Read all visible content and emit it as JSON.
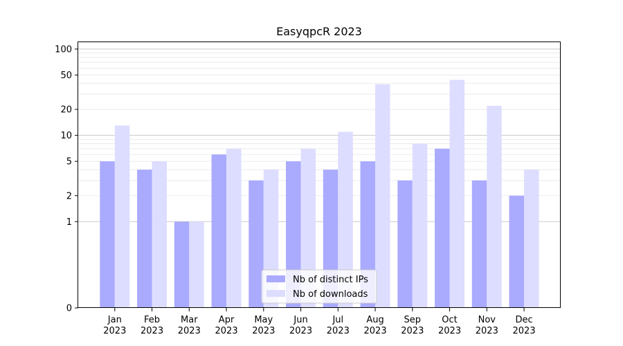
{
  "chart_data": {
    "type": "bar",
    "title": "EasyqpcR 2023",
    "xlabel": "",
    "ylabel": "",
    "yscale": "symlog",
    "ylim": [
      0,
      120
    ],
    "yticks": [
      0,
      1,
      2,
      5,
      10,
      20,
      50,
      100
    ],
    "ytick_labels": [
      "0",
      "1",
      "2",
      "5",
      "10",
      "20",
      "50",
      "100"
    ],
    "categories": [
      "Jan",
      "Feb",
      "Mar",
      "Apr",
      "May",
      "Jun",
      "Jul",
      "Aug",
      "Sep",
      "Oct",
      "Nov",
      "Dec"
    ],
    "category_sublabels": [
      "2023",
      "2023",
      "2023",
      "2023",
      "2023",
      "2023",
      "2023",
      "2023",
      "2023",
      "2023",
      "2023",
      "2023"
    ],
    "series": [
      {
        "name": "Nb of distinct IPs",
        "color": "#aaaaff",
        "values": [
          5,
          4,
          1,
          6,
          3,
          5,
          4,
          5,
          3,
          7,
          3,
          2
        ]
      },
      {
        "name": "Nb of downloads",
        "color": "#ddddff",
        "values": [
          13,
          5,
          1,
          7,
          4,
          7,
          11,
          39,
          8,
          44,
          22,
          4
        ]
      }
    ],
    "grid": true,
    "legend_position": "lower-center"
  }
}
